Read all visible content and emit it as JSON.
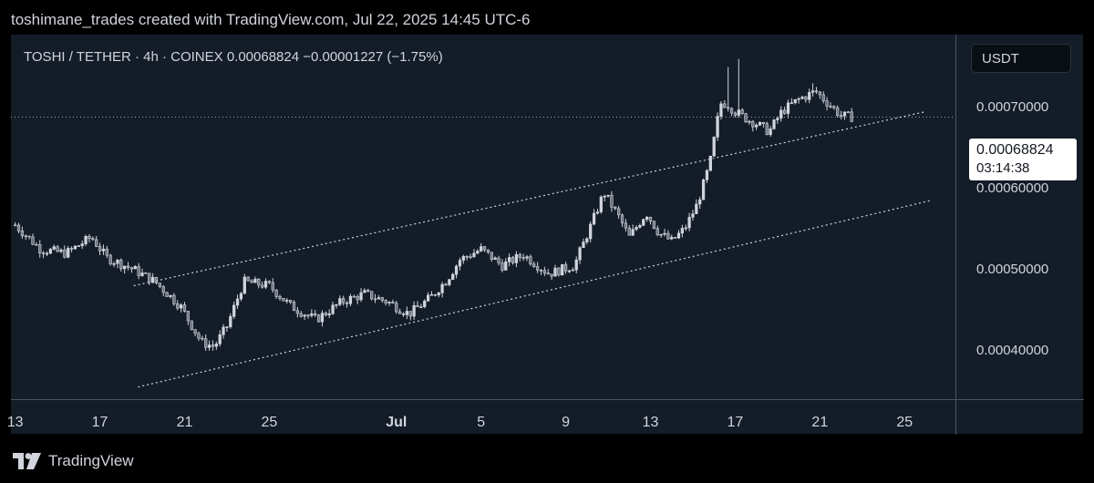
{
  "header": {
    "text": "toshimane_trades created with TradingView.com, Jul 22, 2025 14:45 UTC-6"
  },
  "legend": {
    "symbol_line": "TOSHI / TETHER · 4h · COINEX  0.00068824  −0.00001227 (−1.75%)"
  },
  "currency_button": {
    "label": "USDT"
  },
  "last_price": {
    "value": "0.00068824",
    "countdown": "03:14:38"
  },
  "footer": {
    "brand": "TradingView",
    "logo_icon": "tradingview-logo-icon"
  },
  "colors": {
    "background": "#131c27",
    "candle": "#d1d4dc",
    "trendline": "#d1d4dc",
    "text": "#d1d4dc"
  },
  "chart_data": {
    "type": "candlestick",
    "symbol": "TOSHI / TETHER",
    "interval": "4h",
    "exchange": "COINEX",
    "last": 0.00068824,
    "change": -1.227e-05,
    "change_pct": -1.75,
    "y_unit": "USDT",
    "ylim": [
      0.00034,
      0.00079
    ],
    "y_ticks": [
      {
        "value": 0.0004,
        "label": "0.00040000"
      },
      {
        "value": 0.0005,
        "label": "0.00050000"
      },
      {
        "value": 0.0006,
        "label": "0.00060000"
      },
      {
        "value": 0.0007,
        "label": "0.00070000"
      }
    ],
    "x_ticks": [
      {
        "day": 13,
        "label": "13"
      },
      {
        "day": 17,
        "label": "17"
      },
      {
        "day": 21,
        "label": "21"
      },
      {
        "day": 25,
        "label": "25"
      },
      {
        "day": 31,
        "label": "Jul",
        "bold": true
      },
      {
        "day": 35,
        "label": "5"
      },
      {
        "day": 39,
        "label": "9"
      },
      {
        "day": 43,
        "label": "13"
      },
      {
        "day": 47,
        "label": "17"
      },
      {
        "day": 51,
        "label": "21"
      },
      {
        "day": 55,
        "label": "25"
      }
    ],
    "x_range_days": [
      12.8,
      57.4
    ],
    "price_path_days": [
      [
        13.0,
        0.000555
      ],
      [
        14.2,
        0.000525
      ],
      [
        15.4,
        0.00052
      ],
      [
        16.6,
        0.00054
      ],
      [
        17.3,
        0.000515
      ],
      [
        18.6,
        0.0005
      ],
      [
        19.6,
        0.000485
      ],
      [
        20.8,
        0.000455
      ],
      [
        21.8,
        0.00041
      ],
      [
        22.4,
        0.000405
      ],
      [
        23.0,
        0.00043
      ],
      [
        23.8,
        0.000485
      ],
      [
        25.0,
        0.00048
      ],
      [
        26.0,
        0.000455
      ],
      [
        27.2,
        0.000438
      ],
      [
        28.4,
        0.00046
      ],
      [
        29.5,
        0.00047
      ],
      [
        30.6,
        0.00046
      ],
      [
        31.6,
        0.000445
      ],
      [
        32.6,
        0.000465
      ],
      [
        33.4,
        0.000488
      ],
      [
        34.0,
        0.000512
      ],
      [
        35.0,
        0.000525
      ],
      [
        36.0,
        0.000505
      ],
      [
        37.0,
        0.000518
      ],
      [
        38.2,
        0.000495
      ],
      [
        39.4,
        0.000505
      ],
      [
        40.2,
        0.000555
      ],
      [
        40.8,
        0.000595
      ],
      [
        41.5,
        0.000565
      ],
      [
        42.0,
        0.00054
      ],
      [
        42.8,
        0.00057
      ],
      [
        43.4,
        0.000545
      ],
      [
        44.0,
        0.000535
      ],
      [
        44.6,
        0.00055
      ],
      [
        45.2,
        0.00058
      ],
      [
        45.8,
        0.00063
      ],
      [
        46.3,
        0.000705
      ],
      [
        46.6,
        0.000705
      ],
      [
        47.0,
        0.000695
      ],
      [
        47.6,
        0.000685
      ],
      [
        48.0,
        0.00068
      ],
      [
        48.6,
        0.00067
      ],
      [
        49.2,
        0.000695
      ],
      [
        50.0,
        0.00071
      ],
      [
        50.8,
        0.00072
      ],
      [
        51.4,
        0.000705
      ],
      [
        52.0,
        0.00069
      ],
      [
        52.6,
        0.000688
      ]
    ],
    "spikes": [
      {
        "day": 46.6,
        "high": 0.00075
      },
      {
        "day": 47.2,
        "high": 0.00076
      },
      {
        "day": 50.6,
        "high": 0.00073
      }
    ],
    "channel_upper": {
      "start": [
        18.6,
        0.00048
      ],
      "end": [
        56.0,
        0.000695
      ]
    },
    "channel_lower": {
      "start": [
        18.8,
        0.000355
      ],
      "end": [
        56.2,
        0.000585
      ]
    }
  }
}
